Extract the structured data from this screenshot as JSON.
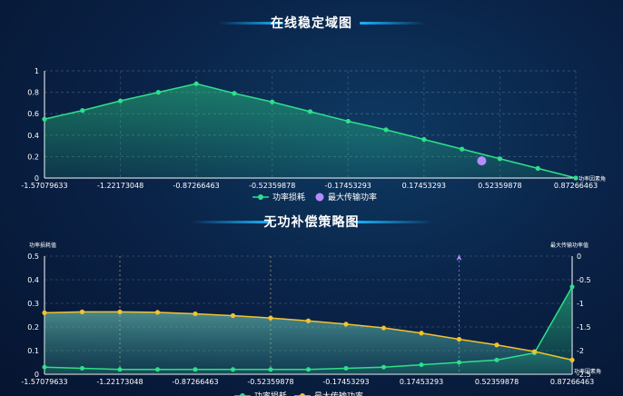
{
  "colors": {
    "loss_line": "#2ee08a",
    "loss_area": "#2ee08a",
    "power_line": "#f2c230",
    "max_point": "#b48cff",
    "axis": "#ffffff"
  },
  "chart_data": [
    {
      "type": "area",
      "title": "在线稳定域图",
      "x_label": "功率因素角",
      "x_ticks": [
        "-1.57079633",
        "-1.22173048",
        "-0.87266463",
        "-0.52359878",
        "-0.17453293",
        "0.17453293",
        "0.52359878",
        "0.87266463"
      ],
      "y_ticks": [
        "0",
        "0.2",
        "0.4",
        "0.6",
        "0.8",
        "1"
      ],
      "ylim": [
        0,
        1
      ],
      "xlim": [
        -1.57079633,
        0.87266463
      ],
      "legend": [
        "功率损耗",
        "最大传输功率"
      ],
      "series": [
        {
          "name": "功率损耗",
          "x": [
            -1.5708,
            -1.3963,
            -1.2217,
            -1.0472,
            -0.8727,
            -0.6981,
            -0.5236,
            -0.3491,
            -0.1745,
            0.0,
            0.1745,
            0.3491,
            0.5236,
            0.6981,
            0.8727
          ],
          "y": [
            0.55,
            0.63,
            0.72,
            0.8,
            0.88,
            0.79,
            0.71,
            0.62,
            0.53,
            0.45,
            0.36,
            0.27,
            0.18,
            0.09,
            0.0
          ]
        },
        {
          "name": "最大传输功率",
          "x": [
            0.44
          ],
          "y": [
            0.16
          ]
        }
      ]
    },
    {
      "type": "area",
      "title": "无功补偿策略图",
      "y_left_label": "功率损耗值",
      "y_right_label": "最大传输功率值",
      "x_label": "功率因素角",
      "x_ticks": [
        "-1.57079633",
        "-1.22173048",
        "-0.87266463",
        "-0.52359878",
        "-0.17453293",
        "0.17453293",
        "0.52359878",
        "0.87266463"
      ],
      "y_left_ticks": [
        "0",
        "0.1",
        "0.2",
        "0.3",
        "0.4",
        "0.5"
      ],
      "y_right_ticks": [
        "0",
        "-0.5",
        "-1",
        "-1.5",
        "-2",
        "-2.5"
      ],
      "ylim_left": [
        0,
        0.5
      ],
      "ylim_right": [
        -2.5,
        0
      ],
      "xlim": [
        -1.57079633,
        0.87266463
      ],
      "legend": [
        "功率损耗",
        "最大传输功率"
      ],
      "series": [
        {
          "name": "功率损耗",
          "x": [
            -1.5708,
            -1.3963,
            -1.2217,
            -1.0472,
            -0.8727,
            -0.6981,
            -0.5236,
            -0.3491,
            -0.1745,
            0.0,
            0.1745,
            0.3491,
            0.5236,
            0.6981,
            0.8727
          ],
          "y": [
            0.03,
            0.025,
            0.02,
            0.02,
            0.02,
            0.02,
            0.02,
            0.02,
            0.025,
            0.03,
            0.04,
            0.05,
            0.06,
            0.09,
            0.37
          ]
        },
        {
          "name": "最大传输功率",
          "x": [
            -1.5708,
            -1.3963,
            -1.2217,
            -1.0472,
            -0.8727,
            -0.6981,
            -0.5236,
            -0.3491,
            -0.1745,
            0.0,
            0.1745,
            0.3491,
            0.5236,
            0.6981,
            0.8727
          ],
          "y": [
            -1.2,
            -1.18,
            -1.18,
            -1.19,
            -1.22,
            -1.26,
            -1.31,
            -1.37,
            -1.44,
            -1.52,
            -1.63,
            -1.76,
            -1.88,
            -2.02,
            -2.2
          ]
        }
      ]
    }
  ]
}
